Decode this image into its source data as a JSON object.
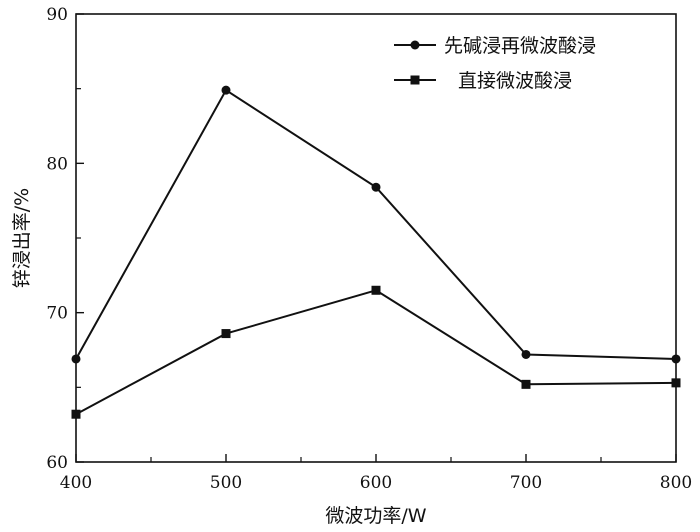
{
  "chart_data": {
    "type": "line",
    "xlabel": "微波功率/W",
    "ylabel": "锌浸出率/%",
    "xlim": [
      400,
      800
    ],
    "ylim": [
      60,
      90
    ],
    "xticks": [
      "400",
      "500",
      "600",
      "700",
      "800"
    ],
    "yticks": [
      "60",
      "70",
      "80",
      "90"
    ],
    "grid": false,
    "legend_position": "top-right",
    "x": [
      400,
      500,
      600,
      700,
      800
    ],
    "series": [
      {
        "name": "先碱浸再微波酸浸",
        "marker": "circle",
        "color": "#111111",
        "values": [
          66.9,
          84.9,
          78.4,
          67.2,
          66.9
        ]
      },
      {
        "name": "直接微波酸浸",
        "marker": "square",
        "color": "#111111",
        "values": [
          63.2,
          68.6,
          71.5,
          65.2,
          65.3
        ]
      }
    ]
  }
}
